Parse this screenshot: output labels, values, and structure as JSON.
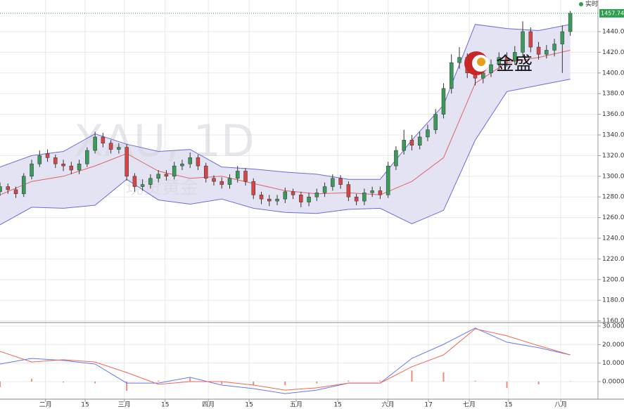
{
  "chart_data": [
    {
      "type": "candlestick",
      "watermark": "XAU, 1D",
      "watermark_sub": "现货黄金",
      "logo": "金盛",
      "realtime_label": "实时",
      "last_price": 1457.74,
      "up_color": "#3a9a5a",
      "down_color": "#d64545",
      "x": [
        0,
        2,
        4,
        6,
        8,
        10,
        12,
        14,
        16,
        18,
        20,
        22,
        24,
        26,
        28,
        30,
        32,
        34,
        36,
        38,
        40,
        42,
        44,
        46,
        48,
        50,
        52,
        54,
        56,
        58,
        60,
        62,
        64,
        66,
        68,
        70,
        72,
        74,
        76,
        78,
        80,
        82,
        84,
        86,
        88,
        90,
        92,
        94,
        96,
        98,
        100,
        102,
        104,
        106,
        108,
        110,
        112,
        114,
        116,
        118,
        120,
        122,
        124,
        126,
        128,
        130,
        132,
        134,
        136,
        138,
        140,
        142,
        144
      ],
      "open": [
        1285,
        1290,
        1287,
        1283,
        1300,
        1312,
        1322,
        1318,
        1312,
        1310,
        1306,
        1312,
        1325,
        1338,
        1332,
        1326,
        1328,
        1300,
        1290,
        1292,
        1298,
        1302,
        1300,
        1310,
        1312,
        1318,
        1310,
        1298,
        1295,
        1292,
        1298,
        1305,
        1295,
        1282,
        1278,
        1276,
        1278,
        1285,
        1282,
        1275,
        1280,
        1284,
        1290,
        1298,
        1292,
        1280,
        1276,
        1284,
        1286,
        1282,
        1310,
        1325,
        1335,
        1330,
        1338,
        1345,
        1360,
        1385,
        1410,
        1415,
        1400,
        1395,
        1400,
        1408,
        1415,
        1412,
        1420,
        1440,
        1425,
        1418,
        1422,
        1428,
        1440
      ],
      "high": [
        1294,
        1293,
        1290,
        1303,
        1316,
        1325,
        1326,
        1321,
        1316,
        1314,
        1316,
        1328,
        1343,
        1342,
        1335,
        1332,
        1331,
        1303,
        1297,
        1302,
        1306,
        1306,
        1314,
        1316,
        1323,
        1321,
        1313,
        1301,
        1299,
        1302,
        1310,
        1308,
        1298,
        1285,
        1282,
        1282,
        1289,
        1288,
        1285,
        1284,
        1288,
        1294,
        1302,
        1301,
        1295,
        1283,
        1288,
        1290,
        1290,
        1314,
        1329,
        1345,
        1340,
        1343,
        1350,
        1365,
        1390,
        1418,
        1425,
        1419,
        1405,
        1410,
        1413,
        1420,
        1420,
        1426,
        1450,
        1444,
        1430,
        1427,
        1433,
        1446,
        1460
      ],
      "low": [
        1281,
        1283,
        1279,
        1280,
        1297,
        1309,
        1314,
        1308,
        1305,
        1302,
        1302,
        1309,
        1322,
        1328,
        1322,
        1322,
        1296,
        1285,
        1286,
        1288,
        1294,
        1296,
        1297,
        1306,
        1308,
        1306,
        1294,
        1291,
        1288,
        1288,
        1294,
        1291,
        1278,
        1273,
        1271,
        1272,
        1274,
        1278,
        1270,
        1271,
        1276,
        1280,
        1286,
        1288,
        1276,
        1272,
        1272,
        1280,
        1278,
        1279,
        1306,
        1321,
        1325,
        1326,
        1334,
        1341,
        1356,
        1380,
        1404,
        1395,
        1388,
        1390,
        1396,
        1403,
        1406,
        1408,
        1415,
        1420,
        1413,
        1414,
        1416,
        1400,
        1436
      ],
      "close": [
        1290,
        1287,
        1283,
        1300,
        1312,
        1320,
        1318,
        1312,
        1310,
        1306,
        1312,
        1325,
        1338,
        1332,
        1326,
        1328,
        1300,
        1290,
        1292,
        1298,
        1302,
        1300,
        1310,
        1312,
        1318,
        1310,
        1298,
        1295,
        1292,
        1298,
        1305,
        1295,
        1282,
        1278,
        1276,
        1278,
        1285,
        1282,
        1275,
        1280,
        1284,
        1290,
        1298,
        1292,
        1280,
        1276,
        1284,
        1286,
        1282,
        1310,
        1325,
        1335,
        1330,
        1338,
        1345,
        1360,
        1385,
        1410,
        1415,
        1400,
        1395,
        1400,
        1408,
        1415,
        1412,
        1420,
        1440,
        1425,
        1418,
        1422,
        1428,
        1440,
        1457.74
      ],
      "bands": {
        "x": [
          0,
          8,
          16,
          24,
          32,
          40,
          48,
          56,
          64,
          72,
          80,
          88,
          96,
          104,
          112,
          120,
          128,
          136,
          144
        ],
        "fill": "#e3e3f3",
        "series": [
          {
            "color": "#6b6bd8",
            "values": [
              1309,
              1320,
              1324,
              1341,
              1331,
              1324,
              1326,
              1309,
              1307,
              1304,
              1302,
              1297,
              1297,
              1335,
              1369,
              1447,
              1443,
              1441,
              1447
            ]
          },
          {
            "color": "#e06464",
            "values": [
              1282,
              1295,
              1300,
              1310,
              1322,
              1305,
              1298,
              1300,
              1293,
              1286,
              1283,
              1284,
              1282,
              1295,
              1318,
              1390,
              1410,
              1415,
              1422
            ]
          },
          {
            "color": "#6b6bd8",
            "values": [
              1253,
              1270,
              1269,
              1272,
              1297,
              1277,
              1273,
              1278,
              1269,
              1265,
              1264,
              1268,
              1269,
              1254,
              1267,
              1335,
              1382,
              1388,
              1394
            ]
          }
        ]
      },
      "xlim": [
        0,
        151
      ],
      "ylim": [
        1158.4,
        1470.6
      ],
      "yticks": [
        {
          "value": 1160,
          "label": "1160.00"
        },
        {
          "value": 1180,
          "label": "1180.00"
        },
        {
          "value": 1200,
          "label": "1200.00"
        },
        {
          "value": 1220,
          "label": "1220.00"
        },
        {
          "value": 1240,
          "label": "1240.00"
        },
        {
          "value": 1260,
          "label": "1260.00"
        },
        {
          "value": 1280,
          "label": "1280.00"
        },
        {
          "value": 1300,
          "label": "1300.00"
        },
        {
          "value": 1320,
          "label": "1320.00"
        },
        {
          "value": 1340,
          "label": "1340.00"
        },
        {
          "value": 1360,
          "label": "1360.00"
        },
        {
          "value": 1380,
          "label": "1380.00"
        },
        {
          "value": 1400,
          "label": "1400.00"
        },
        {
          "value": 1420,
          "label": "1420.00"
        },
        {
          "value": 1440,
          "label": "1440.00"
        }
      ],
      "grid": true
    },
    {
      "type": "macd",
      "x": [
        0,
        8,
        16,
        24,
        32,
        40,
        48,
        56,
        64,
        72,
        80,
        88,
        96,
        104,
        112,
        120,
        128,
        136,
        144
      ],
      "series": [
        {
          "color": "#6677ee",
          "values": [
            9.5,
            12.5,
            11.4,
            9.5,
            -0.8,
            -0.8,
            2.3,
            -1.9,
            -3.8,
            -6.5,
            -4.6,
            -0.8,
            -0.8,
            12.5,
            20.1,
            28.9,
            21.3,
            18.3,
            14.4
          ]
        },
        {
          "color": "#ee6655",
          "values": [
            16.3,
            10.6,
            11.8,
            10.6,
            4.9,
            -1.5,
            0,
            0,
            -1.9,
            -4.6,
            -3.4,
            -0.8,
            -0.8,
            8,
            14.4,
            28.5,
            24.7,
            19.4,
            14.4
          ]
        }
      ],
      "histogram": {
        "color": "#f08a80",
        "values": [
          -3,
          1.5,
          -0.5,
          -1,
          -5,
          0.5,
          2,
          -1.5,
          -2,
          -2,
          -1,
          0.5,
          0.5,
          6,
          5,
          0.5,
          -3.5,
          -1.5,
          0.2
        ]
      },
      "xlim": [
        0,
        151
      ],
      "ylim": [
        -9.5,
        31.5
      ],
      "yticks": [
        {
          "value": 0,
          "label": "0.0000"
        },
        {
          "value": 10,
          "label": "10.0000"
        },
        {
          "value": 20,
          "label": "20.0000"
        },
        {
          "value": 30,
          "label": "30.0000"
        }
      ],
      "xticks": [
        {
          "value": 11.5,
          "label": "二月"
        },
        {
          "value": 21.5,
          "label": "15"
        },
        {
          "value": 31.4,
          "label": "三月"
        },
        {
          "value": 41.7,
          "label": "15"
        },
        {
          "value": 52.6,
          "label": "四月"
        },
        {
          "value": 62.9,
          "label": "15"
        },
        {
          "value": 74.8,
          "label": "五月"
        },
        {
          "value": 85.3,
          "label": "15"
        },
        {
          "value": 98,
          "label": "六月"
        },
        {
          "value": 108.2,
          "label": "17"
        },
        {
          "value": 118.5,
          "label": "七月"
        },
        {
          "value": 128.4,
          "label": "15"
        },
        {
          "value": 141.6,
          "label": "八月"
        }
      ],
      "grid": true
    }
  ]
}
